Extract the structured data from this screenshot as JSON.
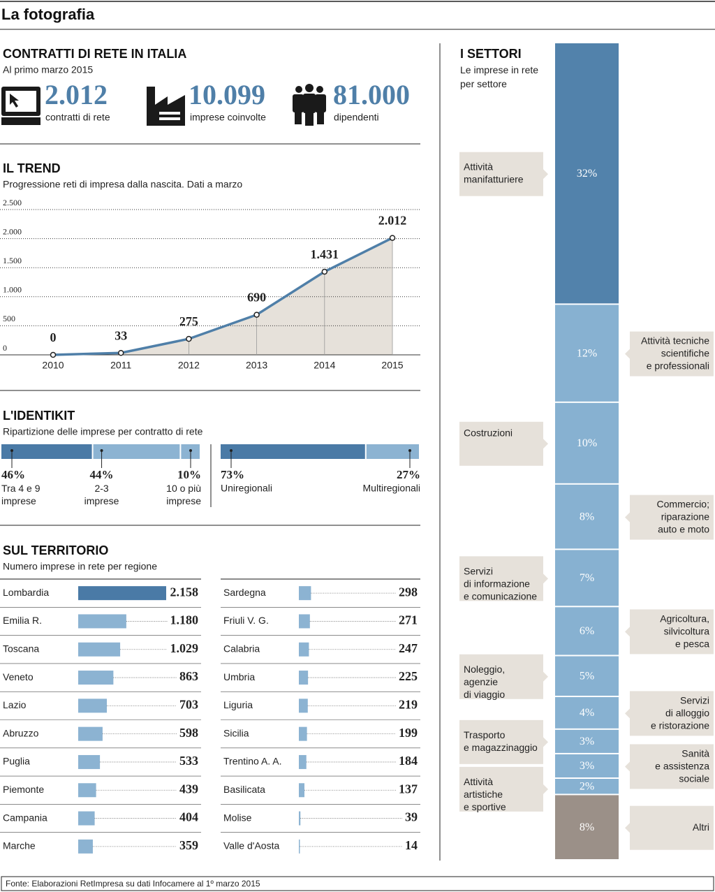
{
  "header": {
    "title": "La fotografia"
  },
  "summary": {
    "title": "CONTRATTI DI RETE IN ITALIA",
    "subtitle": "Al primo marzo 2015",
    "stats": [
      {
        "value": "2.012",
        "label": "contratti di rete"
      },
      {
        "value": "10.099",
        "label": "imprese coinvolte"
      },
      {
        "value": "81.000",
        "label": "dipendenti"
      }
    ]
  },
  "chart_data": [
    {
      "type": "line",
      "title": "IL TREND",
      "subtitle": "Progressione reti di impresa dalla nascita. Dati a marzo",
      "categories": [
        "2010",
        "2011",
        "2012",
        "2013",
        "2014",
        "2015"
      ],
      "values": [
        0,
        33,
        275,
        690,
        1431,
        2012
      ],
      "value_labels": [
        "0",
        "33",
        "275",
        "690",
        "1.431",
        "2.012"
      ],
      "color": "#4f7fa8",
      "area_color": "#e6e1da",
      "ylim": [
        0,
        2500
      ],
      "yticks": [
        0,
        500,
        {
          "value": 1000,
          "label": "1.000"
        },
        {
          "value": 1500,
          "label": "1.500"
        },
        {
          "value": 2000,
          "label": "2.000"
        },
        {
          "value": 2500,
          "label": "2.500"
        }
      ],
      "grid": true
    },
    {
      "type": "stacked-bar",
      "title": "L'IDENTIKIT",
      "subtitle": "Ripartizione delle imprese per contratto di rete",
      "series": [
        {
          "name": "Tra 4 e 9\nimprese",
          "color": "#4a7aa6",
          "values": [
            46
          ],
          "value_labels": [
            "46%"
          ]
        },
        {
          "name": "2-3\nimprese",
          "color": "#8cb3d2",
          "values": [
            44
          ],
          "value_labels": [
            "44%"
          ]
        },
        {
          "name": "10 o più\nimprese",
          "color": "#8cb3d2",
          "values": [
            10
          ],
          "value_labels": [
            "10%"
          ]
        }
      ]
    },
    {
      "type": "stacked-bar",
      "series": [
        {
          "name": "Uniregionali",
          "color": "#4a7aa6",
          "values": [
            73
          ],
          "value_labels": [
            "73%"
          ]
        },
        {
          "name": "Multiregionali",
          "color": "#8cb3d2",
          "values": [
            27
          ],
          "value_labels": [
            "27%"
          ]
        }
      ]
    },
    {
      "type": "hbar",
      "title": "SUL TERRITORIO",
      "subtitle": "Numero imprese in rete per regione",
      "categories": [
        "Lombardia",
        "Emilia R.",
        "Toscana",
        "Veneto",
        "Lazio",
        "Abruzzo",
        "Puglia",
        "Piemonte",
        "Campania",
        "Marche",
        "Sardegna",
        "Friuli V. G.",
        "Calabria",
        "Umbria",
        "Liguria",
        "Sicilia",
        "Trentino A. A.",
        "Basilicata",
        "Molise",
        "Valle d'Aosta"
      ],
      "values": [
        2158,
        1180,
        1029,
        863,
        703,
        598,
        533,
        439,
        404,
        359,
        298,
        271,
        247,
        225,
        219,
        199,
        184,
        137,
        39,
        14
      ],
      "value_labels": [
        "2.158",
        "1.180",
        "1.029",
        "863",
        "703",
        "598",
        "533",
        "439",
        "404",
        "359",
        "298",
        "271",
        "247",
        "225",
        "219",
        "199",
        "184",
        "137",
        "39",
        "14"
      ],
      "colors": [
        "#4a7aa6",
        "#8cb3d2",
        "#8cb3d2",
        "#8cb3d2",
        "#8cb3d2",
        "#8cb3d2",
        "#8cb3d2",
        "#8cb3d2",
        "#8cb3d2",
        "#8cb3d2",
        "#8cb3d2",
        "#8cb3d2",
        "#8cb3d2",
        "#8cb3d2",
        "#8cb3d2",
        "#8cb3d2",
        "#8cb3d2",
        "#8cb3d2",
        "#8cb3d2",
        "#8cb3d2"
      ]
    },
    {
      "type": "stacked-column",
      "title": "I SETTORI",
      "subtitle": "Le imprese in rete\nper settore",
      "series": [
        {
          "name": "Attività\nmanifatturiere",
          "color": "#5282ab",
          "values": [
            32
          ],
          "value_labels": [
            "32%"
          ]
        },
        {
          "name": "Attività tecniche\nscientifiche\ne professionali",
          "color": "#87b1d1",
          "values": [
            12
          ],
          "value_labels": [
            "12%"
          ]
        },
        {
          "name": "Costruzioni",
          "color": "#87b1d1",
          "values": [
            10
          ],
          "value_labels": [
            "10%"
          ]
        },
        {
          "name": "Commercio;\nriparazione\nauto e moto",
          "color": "#87b1d1",
          "values": [
            8
          ],
          "value_labels": [
            "8%"
          ]
        },
        {
          "name": "Servizi\ndi informazione\ne comunicazione",
          "color": "#87b1d1",
          "values": [
            7
          ],
          "value_labels": [
            "7%"
          ]
        },
        {
          "name": "Agricoltura,\nsilvicoltura\ne pesca",
          "color": "#87b1d1",
          "values": [
            6
          ],
          "value_labels": [
            "6%"
          ]
        },
        {
          "name": "Noleggio,\nagenzie\ndi viaggio",
          "color": "#87b1d1",
          "values": [
            5
          ],
          "value_labels": [
            "5%"
          ]
        },
        {
          "name": "Servizi\ndi alloggio\ne ristorazione",
          "color": "#87b1d1",
          "values": [
            4
          ],
          "value_labels": [
            "4%"
          ]
        },
        {
          "name": "Trasporto\ne magazzinaggio",
          "color": "#87b1d1",
          "values": [
            3
          ],
          "value_labels": [
            "3%"
          ]
        },
        {
          "name": "Sanità\ne assistenza\nsociale",
          "color": "#87b1d1",
          "values": [
            3
          ],
          "value_labels": [
            "3%"
          ]
        },
        {
          "name": "Attività\nartistiche\ne sportive",
          "color": "#87b1d1",
          "values": [
            2
          ],
          "value_labels": [
            "2%"
          ]
        },
        {
          "name": "Altri",
          "color": "#9b9088",
          "values": [
            8
          ],
          "value_labels": [
            "8%"
          ]
        }
      ]
    }
  ],
  "footer": {
    "source": "Fonte: Elaborazioni RetImpresa su dati Infocamere al 1º marzo 2015"
  }
}
